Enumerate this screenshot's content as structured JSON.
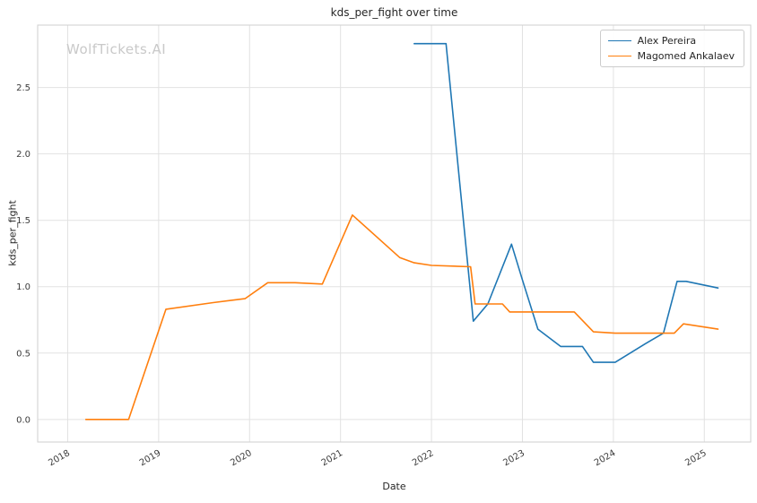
{
  "watermark": "WolfTickets.AI",
  "chart_data": {
    "type": "line",
    "title": "kds_per_fight over time",
    "xlabel": "Date",
    "ylabel": "kds_per_fight",
    "grid": true,
    "legend_position": "upper right",
    "x_ticks": [
      2018,
      2019,
      2020,
      2021,
      2022,
      2023,
      2024,
      2025
    ],
    "x_tick_labels": [
      "2018",
      "2019",
      "2020",
      "2021",
      "2022",
      "2023",
      "2024",
      "2025"
    ],
    "y_ticks": [
      0.0,
      0.5,
      1.0,
      1.5,
      2.0,
      2.5
    ],
    "xlim": [
      2017.67,
      2025.51
    ],
    "ylim": [
      -0.17,
      2.97
    ],
    "series": [
      {
        "name": "Alex Pereira",
        "color": "#1f77b4",
        "x": [
          2021.81,
          2022.16,
          2022.46,
          2022.62,
          2022.88,
          2023.0,
          2023.17,
          2023.42,
          2023.66,
          2023.78,
          2024.02,
          2024.35,
          2024.55,
          2024.7,
          2024.8,
          2025.15
        ],
        "y": [
          2.83,
          2.83,
          0.74,
          0.87,
          1.32,
          1.05,
          0.68,
          0.55,
          0.55,
          0.43,
          0.43,
          0.57,
          0.65,
          1.04,
          1.04,
          0.99
        ]
      },
      {
        "name": "Magomed Ankalaev",
        "color": "#ff7f0e",
        "x": [
          2018.2,
          2018.67,
          2019.08,
          2019.6,
          2019.95,
          2020.2,
          2020.5,
          2020.8,
          2021.13,
          2021.65,
          2021.81,
          2022.0,
          2022.43,
          2022.48,
          2022.78,
          2022.86,
          2023.57,
          2023.78,
          2024.02,
          2024.67,
          2024.77,
          2025.15
        ],
        "y": [
          0.0,
          0.0,
          0.83,
          0.88,
          0.91,
          1.03,
          1.03,
          1.02,
          1.54,
          1.22,
          1.18,
          1.16,
          1.15,
          0.87,
          0.87,
          0.81,
          0.81,
          0.66,
          0.65,
          0.65,
          0.72,
          0.68
        ]
      }
    ]
  }
}
